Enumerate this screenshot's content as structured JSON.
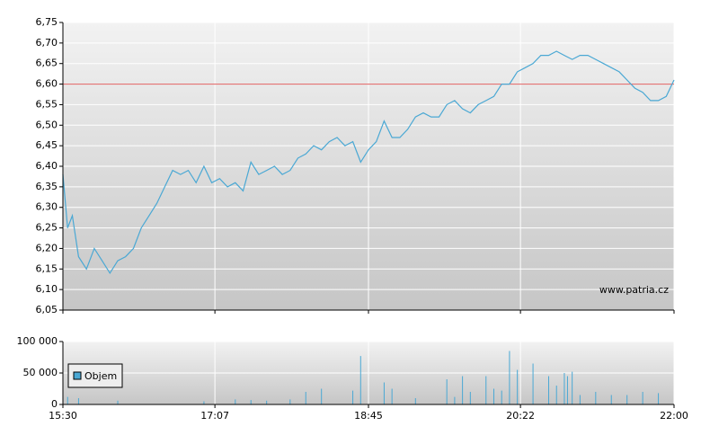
{
  "chart_data": [
    {
      "type": "line",
      "grid": true,
      "watermark": "www.patria.cz",
      "xlim": [
        "15:30",
        "22:00"
      ],
      "xticks": [
        "15:30",
        "17:07",
        "18:45",
        "20:22",
        "22:00"
      ],
      "ylim": [
        6.05,
        6.75
      ],
      "yticks": [
        {
          "value": 6.05,
          "label": "6,05"
        },
        {
          "value": 6.1,
          "label": "6,10"
        },
        {
          "value": 6.15,
          "label": "6,15"
        },
        {
          "value": 6.2,
          "label": "6,20"
        },
        {
          "value": 6.25,
          "label": "6,25"
        },
        {
          "value": 6.3,
          "label": "6,30"
        },
        {
          "value": 6.35,
          "label": "6,35"
        },
        {
          "value": 6.4,
          "label": "6,40"
        },
        {
          "value": 6.45,
          "label": "6,45"
        },
        {
          "value": 6.5,
          "label": "6,50"
        },
        {
          "value": 6.55,
          "label": "6,55"
        },
        {
          "value": 6.6,
          "label": "6,60"
        },
        {
          "value": 6.65,
          "label": "6,65"
        },
        {
          "value": 6.7,
          "label": "6,70"
        },
        {
          "value": 6.75,
          "label": "6,75"
        }
      ],
      "reference_line": {
        "value": 6.6,
        "color": "#e06060"
      },
      "x": [
        "15:30",
        "15:33",
        "15:36",
        "15:40",
        "15:45",
        "15:50",
        "15:55",
        "16:00",
        "16:05",
        "16:10",
        "16:15",
        "16:20",
        "16:25",
        "16:30",
        "16:35",
        "16:40",
        "16:45",
        "16:50",
        "16:55",
        "17:00",
        "17:05",
        "17:10",
        "17:15",
        "17:20",
        "17:25",
        "17:30",
        "17:35",
        "17:40",
        "17:45",
        "17:50",
        "17:55",
        "18:00",
        "18:05",
        "18:10",
        "18:15",
        "18:20",
        "18:25",
        "18:30",
        "18:35",
        "18:40",
        "18:45",
        "18:50",
        "18:55",
        "19:00",
        "19:05",
        "19:10",
        "19:15",
        "19:20",
        "19:25",
        "19:30",
        "19:35",
        "19:40",
        "19:45",
        "19:50",
        "19:55",
        "20:00",
        "20:05",
        "20:10",
        "20:15",
        "20:20",
        "20:25",
        "20:30",
        "20:35",
        "20:40",
        "20:45",
        "20:50",
        "20:55",
        "21:00",
        "21:05",
        "21:10",
        "21:15",
        "21:20",
        "21:25",
        "21:30",
        "21:35",
        "21:40",
        "21:45",
        "21:50",
        "21:55",
        "22:00"
      ],
      "series": [
        {
          "color": "#4aa8d4",
          "values": [
            6.38,
            6.25,
            6.28,
            6.18,
            6.15,
            6.2,
            6.17,
            6.14,
            6.17,
            6.18,
            6.2,
            6.25,
            6.28,
            6.31,
            6.35,
            6.39,
            6.38,
            6.39,
            6.36,
            6.4,
            6.36,
            6.37,
            6.35,
            6.36,
            6.34,
            6.41,
            6.38,
            6.39,
            6.4,
            6.38,
            6.39,
            6.42,
            6.43,
            6.45,
            6.44,
            6.46,
            6.47,
            6.45,
            6.46,
            6.41,
            6.44,
            6.46,
            6.51,
            6.47,
            6.47,
            6.49,
            6.52,
            6.53,
            6.52,
            6.52,
            6.55,
            6.56,
            6.54,
            6.53,
            6.55,
            6.56,
            6.57,
            6.6,
            6.6,
            6.63,
            6.64,
            6.65,
            6.67,
            6.67,
            6.68,
            6.67,
            6.66,
            6.67,
            6.67,
            6.66,
            6.65,
            6.64,
            6.63,
            6.61,
            6.59,
            6.58,
            6.56,
            6.56,
            6.57,
            6.61
          ]
        }
      ]
    },
    {
      "type": "bar",
      "grid": true,
      "legend": "top-left",
      "xlim": [
        "15:30",
        "22:00"
      ],
      "xticks": [
        "15:30",
        "17:07",
        "18:45",
        "20:22",
        "22:00"
      ],
      "ylim": [
        0,
        100000
      ],
      "yticks": [
        0,
        {
          "value": 50000,
          "label": "50 000"
        },
        {
          "value": 100000,
          "label": "100 000"
        }
      ],
      "x": [
        "15:33",
        "15:40",
        "16:05",
        "17:00",
        "17:20",
        "17:30",
        "17:40",
        "17:55",
        "18:05",
        "18:15",
        "18:35",
        "18:40",
        "18:55",
        "19:00",
        "19:15",
        "19:35",
        "19:40",
        "19:45",
        "19:50",
        "20:00",
        "20:05",
        "20:10",
        "20:15",
        "20:20",
        "20:30",
        "20:40",
        "20:45",
        "20:50",
        "20:52",
        "20:55",
        "21:00",
        "21:10",
        "21:20",
        "21:30",
        "21:40",
        "21:50"
      ],
      "series": [
        {
          "name": "Objem",
          "color": "#4aa8d4",
          "values": [
            12000,
            10000,
            6000,
            5000,
            8000,
            7000,
            6000,
            8000,
            20000,
            25000,
            22000,
            77000,
            35000,
            25000,
            10000,
            40000,
            12000,
            45000,
            20000,
            45000,
            25000,
            22000,
            85000,
            55000,
            65000,
            45000,
            30000,
            50000,
            45000,
            52000,
            15000,
            20000,
            15000,
            15000,
            20000,
            18000
          ]
        }
      ]
    }
  ]
}
